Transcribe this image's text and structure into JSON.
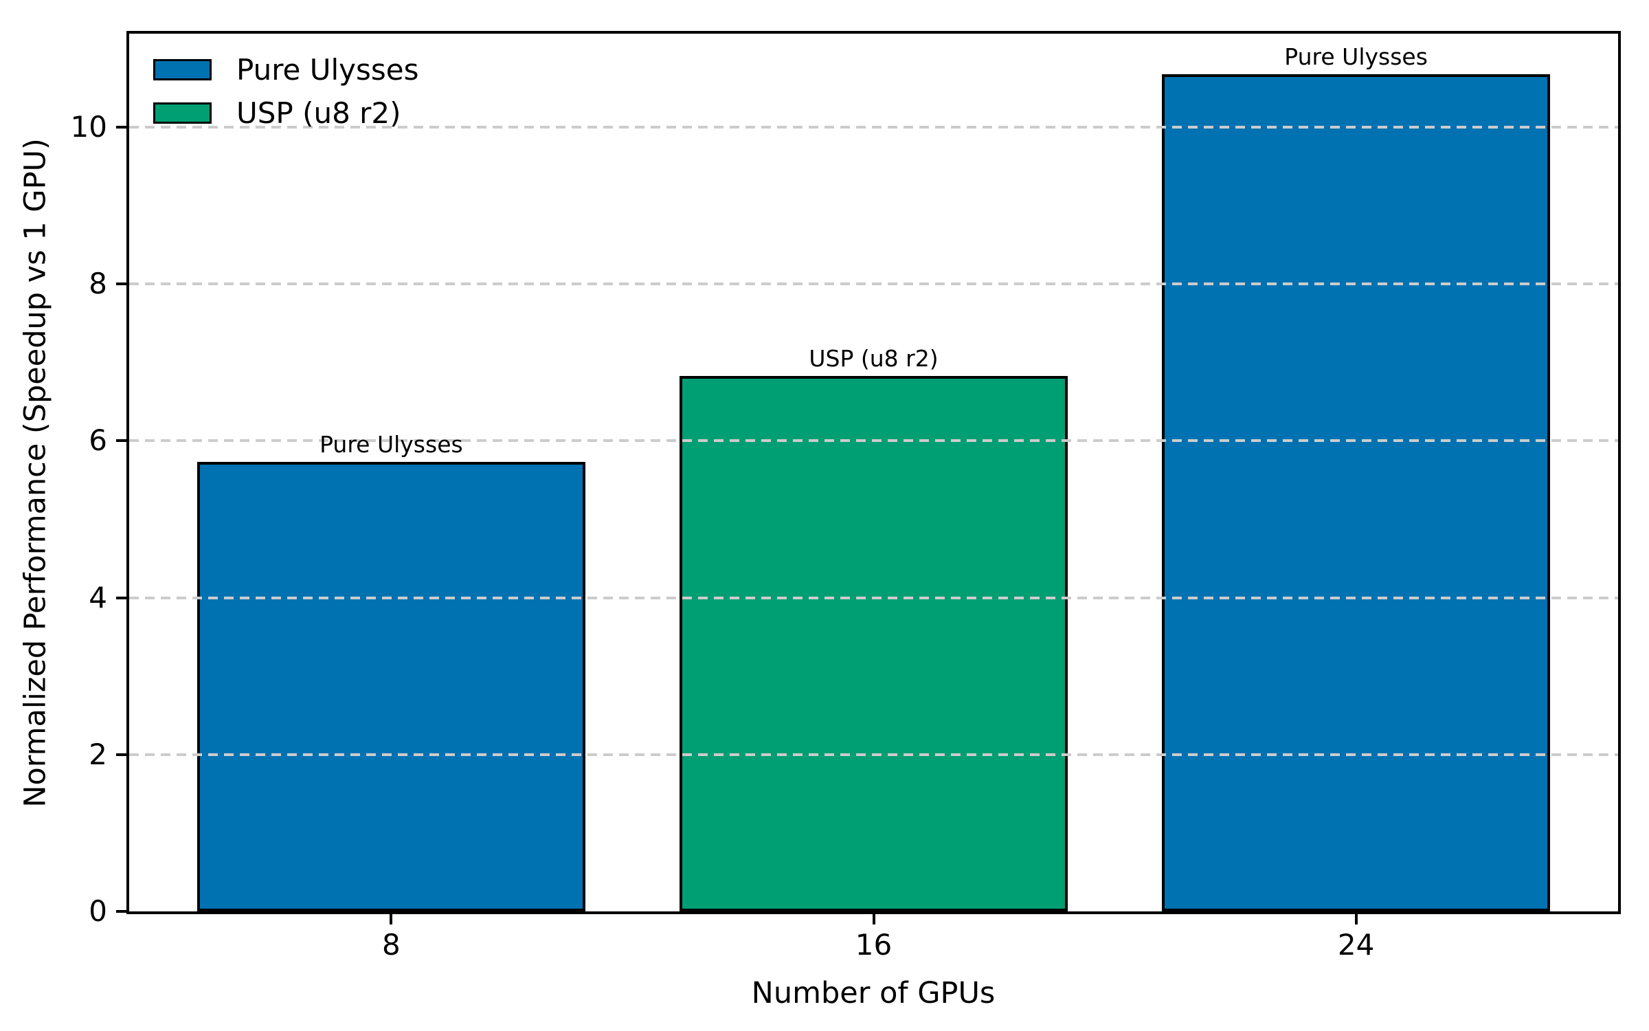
{
  "chart_data": {
    "type": "bar",
    "title": "",
    "xlabel": "Number of GPUs",
    "ylabel": "Normalized Performance (Speedup vs 1 GPU)",
    "categories": [
      "8",
      "16",
      "24"
    ],
    "values": [
      5.73,
      6.83,
      10.67
    ],
    "bar_colors": [
      "#0072B2",
      "#009E73",
      "#0072B2"
    ],
    "bar_annotations": [
      "Pure Ulysses",
      "USP (u8 r2)",
      "Pure Ulysses"
    ],
    "bar_edge_color": "#000000",
    "yticks": [
      0,
      2,
      4,
      6,
      8,
      10
    ],
    "ylim": [
      0,
      11.19
    ],
    "grid": "horizontal dashed gridlines at y ticks, drawn over bars",
    "grid_color": "#cccccc",
    "legend": {
      "position": "upper-left",
      "frame": false,
      "items": [
        {
          "label": "Pure Ulysses",
          "color": "#0072B2"
        },
        {
          "label": "USP (u8 r2)",
          "color": "#009E73"
        }
      ]
    }
  }
}
